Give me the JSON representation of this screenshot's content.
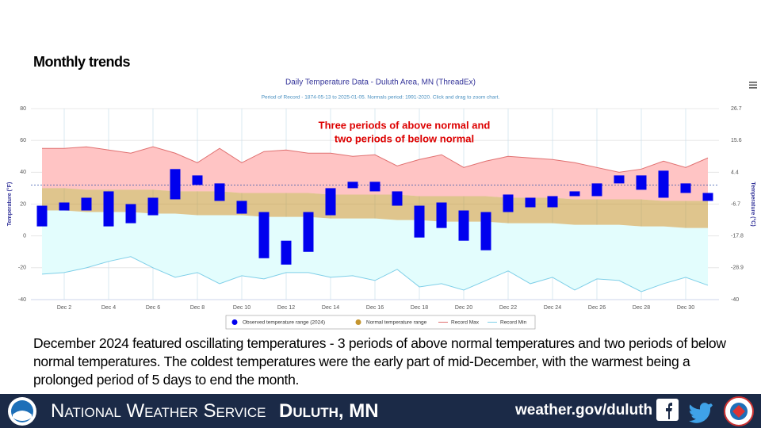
{
  "slide": {
    "heading": "Monthly trends",
    "body": "December 2024 featured oscillating temperatures - 3 periods of above normal temperatures and two periods of below normal temperatures. The coldest temperatures were the early part of mid-December, with the warmest being a prolonged period of 5 days to end the month.",
    "footer": {
      "agency": "National Weather Service",
      "office": "Duluth, MN",
      "url": "weather.gov/duluth"
    }
  },
  "chart_data": {
    "type": "combo",
    "title": "Daily Temperature Data - Duluth Area, MN (ThreadEx)",
    "subtitle": "Period of Record - 1874-05-13 to 2025-01-05. Normals period: 1991-2020. Click and drag to zoom chart.",
    "annotation": [
      "Three periods of above normal and",
      "two periods of below normal"
    ],
    "ylabel": "Temperature (°F)",
    "y2label": "Temperature (°C)",
    "categories": [
      null,
      "Dec 2",
      null,
      "Dec 4",
      null,
      "Dec 6",
      null,
      "Dec 8",
      null,
      "Dec 10",
      null,
      "Dec 12",
      null,
      "Dec 14",
      null,
      "Dec 16",
      null,
      "Dec 18",
      null,
      "Dec 20",
      null,
      "Dec 22",
      null,
      "Dec 24",
      null,
      "Dec 26",
      null,
      "Dec 28",
      null,
      "Dec 30",
      null
    ],
    "ylim": [
      -40,
      80
    ],
    "yticks": [
      -40,
      -20,
      0,
      20,
      40,
      60,
      80
    ],
    "y2lim": [
      -40,
      26.7
    ],
    "y2ticks": [
      -40,
      -28.9,
      -17.8,
      -6.7,
      4.4,
      15.6,
      26.7
    ],
    "plotlines": [
      32
    ],
    "grid": true,
    "series": [
      {
        "name": "Observed temperature range (2024)",
        "color": "#0000ee",
        "high": [
          19,
          21,
          24,
          28,
          20,
          24,
          42,
          38,
          33,
          22,
          15,
          -3,
          15,
          30,
          34,
          34,
          28,
          19,
          21,
          16,
          15,
          26,
          24,
          25,
          28,
          33,
          38,
          38,
          41,
          33,
          27
        ],
        "low": [
          6,
          16,
          16,
          6,
          8,
          13,
          23,
          32,
          22,
          14,
          -14,
          -18,
          -10,
          13,
          30,
          28,
          19,
          -1,
          5,
          -3,
          -9,
          15,
          18,
          18,
          25,
          25,
          33,
          29,
          24,
          27,
          22
        ]
      },
      {
        "name": "Normal temperature range",
        "color": "#c4952f",
        "high": [
          30,
          30,
          29,
          29,
          29,
          29,
          28,
          28,
          28,
          27,
          27,
          27,
          27,
          26,
          26,
          26,
          26,
          25,
          25,
          25,
          25,
          24,
          24,
          24,
          23,
          23,
          23,
          23,
          22,
          22,
          22
        ],
        "low": [
          16,
          16,
          15,
          15,
          15,
          14,
          14,
          13,
          13,
          13,
          12,
          12,
          12,
          11,
          11,
          11,
          10,
          10,
          9,
          9,
          9,
          8,
          8,
          8,
          7,
          7,
          7,
          6,
          6,
          5,
          5
        ]
      },
      {
        "name": "Record Max",
        "color": "#e07070",
        "values": [
          55,
          55,
          56,
          54,
          52,
          56,
          52,
          46,
          55,
          46,
          53,
          54,
          52,
          52,
          50,
          51,
          44,
          48,
          51,
          43,
          47,
          50,
          49,
          48,
          46,
          43,
          40,
          42,
          47,
          43,
          49
        ]
      },
      {
        "name": "Record Min",
        "color": "#7fcfe8",
        "values": [
          -24,
          -23,
          -20,
          -16,
          -13,
          -20,
          -26,
          -23,
          -30,
          -25,
          -27,
          -23,
          -23,
          -26,
          -25,
          -28,
          -21,
          -32,
          -30,
          -34,
          -28,
          -22,
          -30,
          -26,
          -34,
          -27,
          -28,
          -35,
          -30,
          -26,
          -31
        ]
      }
    ]
  }
}
